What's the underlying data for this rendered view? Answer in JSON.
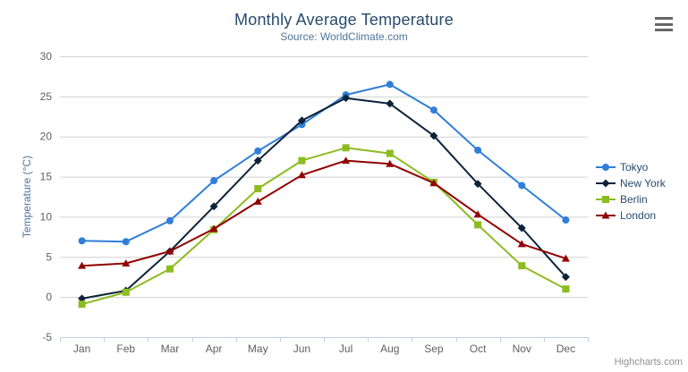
{
  "chart_data": {
    "type": "line",
    "title": "Monthly Average Temperature",
    "subtitle": "Source: WorldClimate.com",
    "categories": [
      "Jan",
      "Feb",
      "Mar",
      "Apr",
      "May",
      "Jun",
      "Jul",
      "Aug",
      "Sep",
      "Oct",
      "Nov",
      "Dec"
    ],
    "series": [
      {
        "name": "Tokyo",
        "color": "#2f7ed8",
        "marker": "circle",
        "values": [
          7.0,
          6.9,
          9.5,
          14.5,
          18.2,
          21.5,
          25.2,
          26.5,
          23.3,
          18.3,
          13.9,
          9.6
        ]
      },
      {
        "name": "New York",
        "color": "#0d233a",
        "marker": "diamond",
        "values": [
          -0.2,
          0.8,
          5.7,
          11.3,
          17.0,
          22.0,
          24.8,
          24.1,
          20.1,
          14.1,
          8.6,
          2.5
        ]
      },
      {
        "name": "Berlin",
        "color": "#8bbc21",
        "marker": "square",
        "values": [
          -0.9,
          0.6,
          3.5,
          8.4,
          13.5,
          17.0,
          18.6,
          17.9,
          14.3,
          9.0,
          3.9,
          1.0
        ]
      },
      {
        "name": "London",
        "color": "#910000",
        "marker": "triangle",
        "values": [
          3.9,
          4.2,
          5.7,
          8.5,
          11.9,
          15.2,
          17.0,
          16.6,
          14.2,
          10.3,
          6.6,
          4.8
        ]
      }
    ],
    "xlabel": "",
    "ylabel": "Temperature (°C)",
    "ylim": [
      -5,
      30
    ],
    "yticks": [
      -5,
      0,
      5,
      10,
      15,
      20,
      25,
      30
    ],
    "grid": "horizontal",
    "legend_position": "right",
    "colors": {
      "title_text": "#274b6d",
      "subtitle_text": "#4d759e",
      "axis_label_text": "#606060",
      "grid_line": "#d0d0d0",
      "axis_line": "#c0d0e0",
      "menu_icon": "#666666"
    }
  },
  "credits": "Highcharts.com",
  "icons": {
    "export_menu": "hamburger-menu-icon"
  }
}
